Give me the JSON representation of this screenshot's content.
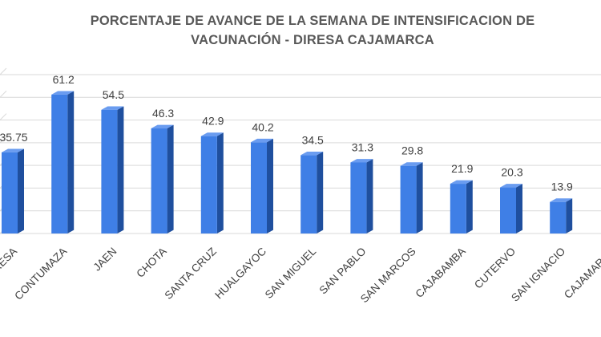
{
  "chart_data": {
    "type": "bar",
    "title_line1": "PORCENTAJE DE AVANCE DE  LA SEMANA DE INTENSIFICACION DE",
    "title_line2": "VACUNACIÓN - DIRESA CAJAMARCA",
    "categories": [
      "DIRESA",
      "CONTUMAZA",
      "JAEN",
      "CHOTA",
      "SANTA CRUZ",
      "HUALGAYOC",
      "SAN MIGUEL",
      "SAN PABLO",
      "SAN MARCOS",
      "CAJABAMBA",
      "CUTERVO",
      "SAN IGNACIO",
      "CAJAMARCA"
    ],
    "values": [
      35.75,
      61.2,
      54.5,
      46.3,
      42.9,
      40.2,
      34.5,
      31.3,
      29.8,
      21.9,
      20.3,
      13.9,
      null
    ],
    "value_labels": [
      "35.75",
      "61.2",
      "54.5",
      "46.3",
      "42.9",
      "40.2",
      "34.5",
      "31.3",
      "29.8",
      "21.9",
      "20.3",
      "13.9",
      ""
    ],
    "ylim": [
      0,
      70
    ],
    "grid": true,
    "legend": "none",
    "colors": {
      "bar_front": "#3f7fe6",
      "bar_side": "#1f4f9e",
      "bar_top": "#6a9cf0",
      "grid": "#d9d9d9",
      "text": "#404040",
      "title": "#595959"
    }
  }
}
